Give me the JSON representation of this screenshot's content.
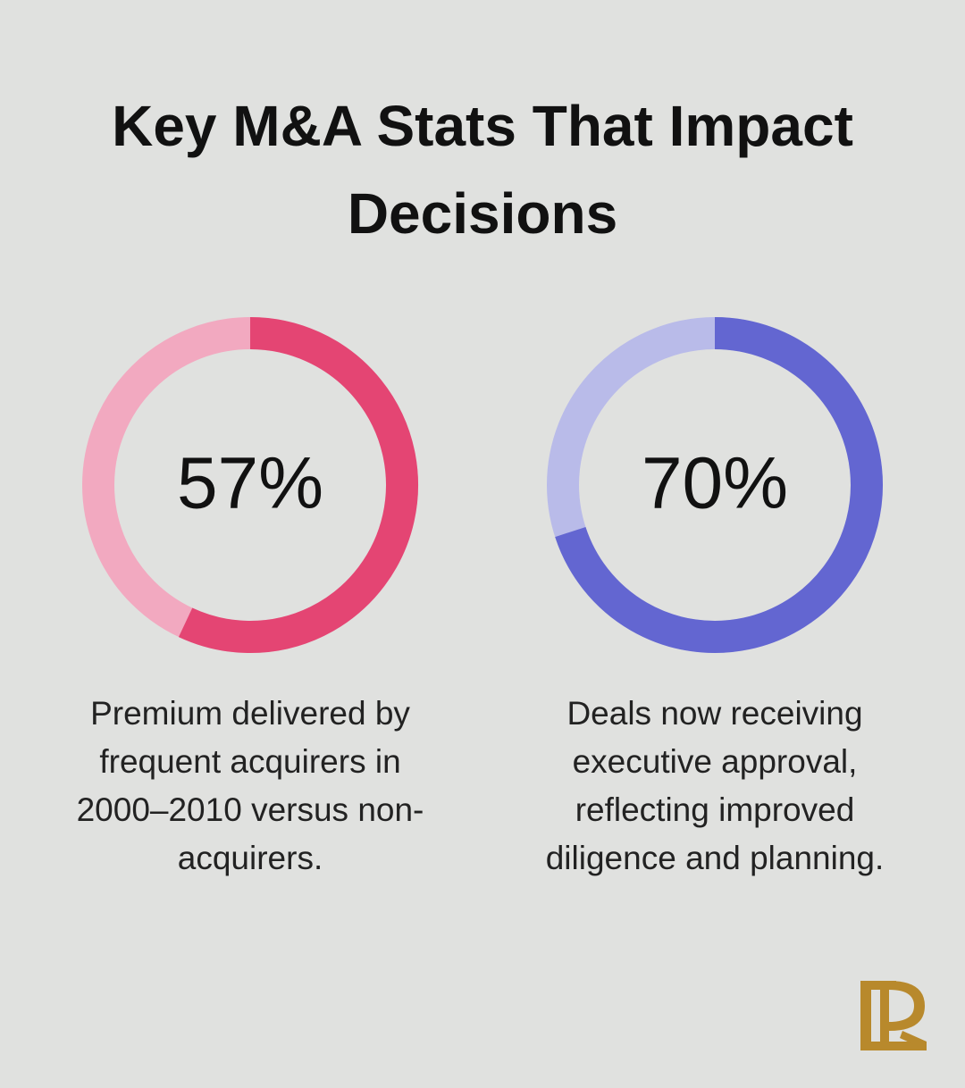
{
  "title": "Key M&A Stats That Impact Decisions",
  "chart_data": [
    {
      "type": "donut",
      "values": [
        57
      ],
      "value_labels": [
        "57%"
      ],
      "color": "#e44573",
      "track_color": "#f2a9c0",
      "description": "Premium delivered by frequent acquirers in 2000–2010 versus non-acquirers."
    },
    {
      "type": "donut",
      "values": [
        70
      ],
      "value_labels": [
        "70%"
      ],
      "color": "#6366d1",
      "track_color": "#b9bbe9",
      "description": "Deals now receiving executive approval, reflecting improved diligence and planning."
    }
  ]
}
